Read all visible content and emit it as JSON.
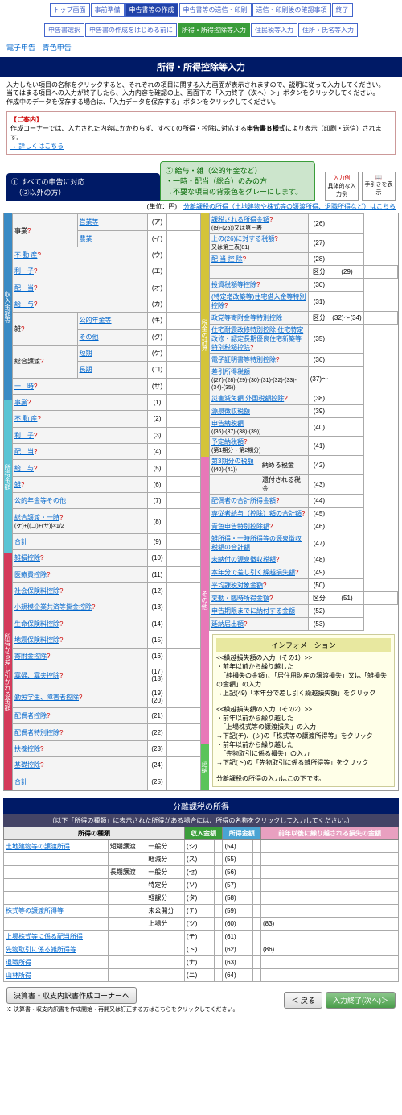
{
  "nav": [
    "トップ画面",
    "事前準備",
    "申告書等の作成",
    "申告書等の送信・印刷",
    "送信・印刷後の確認事項",
    "終了"
  ],
  "nav2": [
    "申告書選択",
    "申告書の作成をはじめる前に",
    "所得・所得控除等入力",
    "住民税等入力",
    "住所・氏名等入力"
  ],
  "sublinks": [
    "電子申告",
    "青色申告"
  ],
  "title": "所得・所得控除等入力",
  "desc": "入力したい項目の名称をクリックすると、それぞれの項目に関する入力画面が表示されますので、説明に従って入力してください。\n当てはまる項目への入力が終了したら、入力内容を確認の上、画面下の「入力終了（次へ）＞」ボタンをクリックしてください。\n作成中のデータを保存する場合は、「入力データを保存する」ボタンをクリックしてください。",
  "info": {
    "h": "【ご案内】",
    "t": "作成コーナーでは、入力された内容にかかわらず、すべての所得・控除に対応する",
    "b": "申告書Ｂ様式",
    "t2": "により表示（印刷・送信）されます。",
    "link": "→ 詳しくはこちら"
  },
  "tab1": "① すべての申告に対応\n　（②以外の方）",
  "tab2": "② 給与・雑（公的年金など）\n・一時・配当（総合）のみの方\n→不要な項目の背景色をグレーにします。",
  "icons": [
    "具体的な入力例",
    "手引きを表示"
  ],
  "unit": "(単位：円)",
  "unitlink": "分離課税の所得（土地建物や株式等の譲渡所得、退職所得など）はこちら",
  "left": {
    "r1": [
      {
        "l": "営業等",
        "k": "(ア)"
      },
      {
        "l": "農業",
        "k": "(イ)"
      },
      {
        "l": "不 動 産",
        "k": "(ウ)",
        "q": 1
      },
      {
        "l": "利　子",
        "k": "(エ)",
        "q": 1
      },
      {
        "l": "配　当",
        "k": "(オ)",
        "q": 1
      },
      {
        "l": "給　与",
        "k": "(カ)",
        "q": 1
      },
      {
        "l": "公的年金等",
        "k": "(キ)"
      },
      {
        "l": "その他",
        "k": "(ク)"
      },
      {
        "l": "短期",
        "k": "(ケ)"
      },
      {
        "l": "長期",
        "k": "(コ)"
      },
      {
        "l": "一　時",
        "k": "(サ)",
        "q": 1
      }
    ],
    "r2": [
      {
        "l": "事業",
        "k": "(1)",
        "q": 1
      },
      {
        "l": "不 動 産",
        "k": "(2)",
        "q": 1
      },
      {
        "l": "利　子",
        "k": "(3)",
        "q": 1
      },
      {
        "l": "配　当",
        "k": "(4)",
        "q": 1
      },
      {
        "l": "給　与",
        "k": "(5)",
        "q": 1
      },
      {
        "l": "雑",
        "k": "(6)",
        "q": 1
      },
      {
        "l": "公的年金等その他",
        "k": "(7)"
      },
      {
        "l": "総合譲渡・一時",
        "s": "(ケ)+{(コ)+(サ)}×1/2",
        "k": "(8)",
        "q": 1
      },
      {
        "l": "合計",
        "k": "(9)"
      }
    ],
    "r3": [
      {
        "l": "雑損控除",
        "k": "(10)",
        "q": 1
      },
      {
        "l": "医療費控除",
        "k": "(11)",
        "q": 1
      },
      {
        "l": "社会保険料控除",
        "k": "(12)",
        "q": 1
      },
      {
        "l": "小規模企業共済等掛金控除",
        "k": "(13)",
        "q": 1
      },
      {
        "l": "生命保険料控除",
        "k": "(14)",
        "q": 1
      },
      {
        "l": "地震保険料控除",
        "k": "(15)",
        "q": 1
      },
      {
        "l": "寄附金控除",
        "k": "(16)",
        "q": 1
      },
      {
        "l": "寡婦、寡夫控除",
        "k": "(17)(18)",
        "q": 1
      },
      {
        "l": "勤労学生、障害者控除",
        "k": "(19)(20)",
        "q": 1
      },
      {
        "l": "配偶者控除",
        "k": "(21)",
        "q": 1
      },
      {
        "l": "配偶者特別控除",
        "k": "(22)",
        "q": 1
      },
      {
        "l": "扶養控除",
        "k": "(23)",
        "q": 1
      },
      {
        "l": "基礎控除",
        "k": "(24)",
        "q": 1
      },
      {
        "l": "合計",
        "k": "(25)"
      }
    ]
  },
  "right": {
    "r1": [
      {
        "l": "課税される所得金額",
        "s": "((9)-(25))又は第三表",
        "k": "(26)",
        "q": 1
      },
      {
        "l": "上の(26)に対する税額",
        "s": "又は第三表(81)",
        "k": "(27)",
        "q": 1
      },
      {
        "l": "配 当 控 除",
        "k": "(28)",
        "q": 1
      },
      {
        "l": "",
        "k": "(29)",
        "kb": "区分"
      },
      {
        "l": "投資税額等控除",
        "k": "(30)",
        "q": 1
      },
      {
        "l": "(特定増改築等)住宅借入金等特別控除",
        "k": "(31)",
        "q": 1
      },
      {
        "l": "政党等寄附金等特別控除",
        "k": "(32)〜(34)",
        "kb": "区分"
      },
      {
        "l": "住宅耐震改修特別控除 住宅特定改修・認定長期優良住宅新築等特別税額控除",
        "k": "(35)",
        "q": 1
      },
      {
        "l": "電子証明書等特別控除",
        "k": "(36)",
        "q": 1
      },
      {
        "l": "差引所得税額",
        "s": "((27)-(28)-(29)-(30)-(31)-(32)-(33)-(34)-(35))",
        "k": "(37)〜"
      },
      {
        "l": "災害減免額 外国税額控除",
        "k": "(38)",
        "q": 1
      }
    ],
    "r2": [
      {
        "l": "源泉徴収税額",
        "k": "(39)"
      },
      {
        "l": "申告納税額",
        "s": "((36)-(37)-(38)-(39))",
        "k": "(40)"
      },
      {
        "l": "予定納税額",
        "s": "(第1期分・第2期分)",
        "k": "(41)",
        "q": 1
      },
      {
        "l": "第3期分の税額",
        "s": "((40)-(41))",
        "l2": "納める税金",
        "k": "(42)"
      },
      {
        "l": "",
        "l2": "還付される税金",
        "k": "(43)"
      }
    ],
    "r3": [
      {
        "l": "配偶者の合計所得金額",
        "k": "(44)",
        "q": 1
      },
      {
        "l": "専従者給与（控除）額の合計額",
        "k": "(45)",
        "q": 1
      },
      {
        "l": "青色申告特別控除額",
        "k": "(46)",
        "q": 1
      },
      {
        "l": "雑所得・一時所得等の源泉徴収税額の合計額",
        "k": "(47)"
      },
      {
        "l": "未納付の源泉徴収税額",
        "k": "(48)",
        "q": 1
      },
      {
        "l": "本年分で差し引く繰越損失額",
        "k": "(49)",
        "q": 1
      },
      {
        "l": "平均課税対象金額",
        "k": "(50)",
        "q": 1
      },
      {
        "l": "変動・臨時所得金額",
        "k": "(51)",
        "kb": "区分",
        "q": 1
      }
    ],
    "r4": [
      {
        "l": "申告期限までに納付する金額",
        "k": "(52)"
      },
      {
        "l": "延納届出額",
        "k": "(53)",
        "q": 1
      }
    ]
  },
  "infopanel": {
    "title": "インフォメーション",
    "body": "<<繰越損失額の入力（その1）>>\n・前年以前から繰り越した\n　「純損失の金額」、「居住用財産の譲渡損失」又は「雑損失の金額」の入力\n→上記(49)「本年分で差し引く繰越損失額」をクリック\n\n<<繰越損失額の入力（その2）>>\n・前年以前から繰り越した\n　「上場株式等の譲渡損失」の入力\n→下記(チ)、(ツ)の「株式等の譲渡所得等」をクリック\n・前年以前から繰り越した\n　「先物取引に係る損失」の入力\n→下記(ト)の「先物取引に係る雑所得等」をクリック\n\n分離課税の所得の入力はこの下です。"
  },
  "sep": {
    "t": "分離課税の所得",
    "s": "（以下「所得の種類」に表示された所得がある場合には、所得の名称をクリックして入力してください。）"
  },
  "btm": {
    "h": [
      "所得の種類",
      "収入金額",
      "所得金額",
      "前年以後に繰り越される損失の金額"
    ],
    "rows": [
      {
        "g": "土地建物等の譲渡所得",
        "sub": "短期譲渡",
        "l": "一般分",
        "k": "(シ)",
        "n": "(54)"
      },
      {
        "l": "軽減分",
        "k": "(ス)",
        "n": "(55)"
      },
      {
        "sub": "長期譲渡",
        "l": "一般分",
        "k": "(セ)",
        "n": "(56)"
      },
      {
        "l": "特定分",
        "k": "(ソ)",
        "n": "(57)"
      },
      {
        "l": "軽課分",
        "k": "(タ)",
        "n": "(58)"
      },
      {
        "g": "株式等の譲渡所得等",
        "l": "未公開分",
        "k": "(チ)",
        "n": "(59)"
      },
      {
        "l": "上場分",
        "k": "(ツ)",
        "n": "(60)",
        "loss": "(83)"
      },
      {
        "g": "上場株式等に係る配当所得",
        "k": "(テ)",
        "n": "(61)"
      },
      {
        "g": "先物取引に係る雑所得等",
        "k": "(ト)",
        "n": "(62)",
        "loss": "(86)"
      },
      {
        "g": "退職所得",
        "k": "(ナ)",
        "n": "(63)"
      },
      {
        "g": "山林所得",
        "k": "(ニ)",
        "n": "(64)"
      }
    ]
  },
  "footer": {
    "btn1": "決算書・収支内訳書作成コーナーへ",
    "note": "※ 決算書・収支内訳書を作成開始・再開又は訂正する方はこちらをクリックしてください。",
    "back": "＜ 戻る",
    "next": "入力終了(次へ)＞"
  }
}
